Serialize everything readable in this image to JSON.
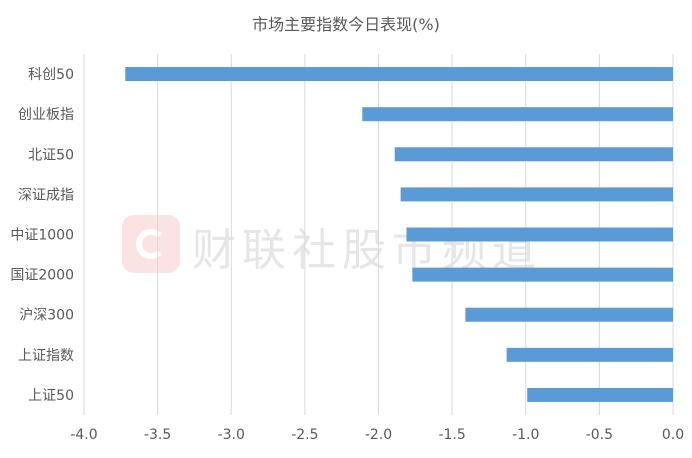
{
  "chart_data": {
    "type": "bar",
    "orientation": "horizontal",
    "title": "市场主要指数今日表现(%)",
    "categories": [
      "科创50",
      "创业板指",
      "北证50",
      "深证成指",
      "中证1000",
      "国证2000",
      "沪深300",
      "上证指数",
      "上证50"
    ],
    "values": [
      -3.72,
      -2.11,
      -1.89,
      -1.85,
      -1.81,
      -1.77,
      -1.41,
      -1.13,
      -0.99
    ],
    "xlim": [
      -4.0,
      0.0
    ],
    "x_ticks": [
      "-4.0",
      "-3.5",
      "-3.0",
      "-2.5",
      "-2.0",
      "-1.5",
      "-1.0",
      "-0.5",
      "0.0"
    ],
    "grid": "vertical",
    "bar_color": "#5b9bd5",
    "watermark": "财联社股市频道"
  }
}
